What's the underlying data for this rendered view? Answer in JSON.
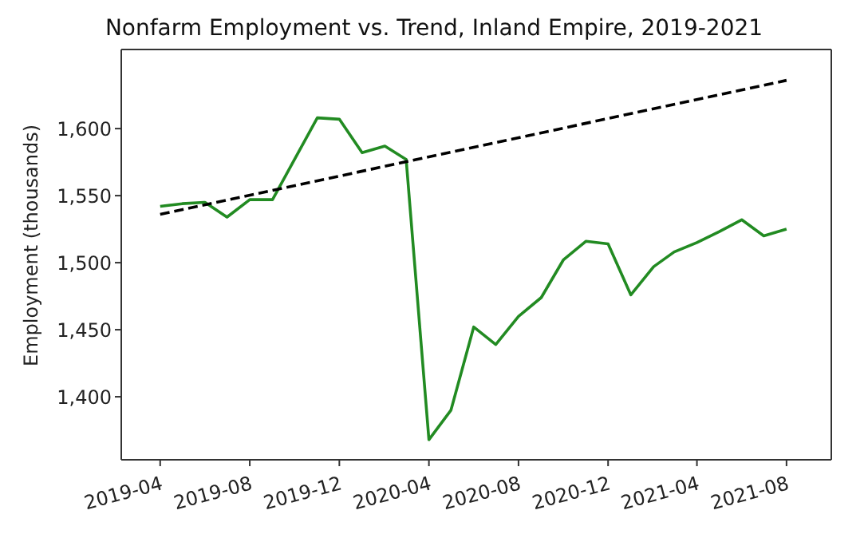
{
  "chart_data": {
    "type": "line",
    "title": "Nonfarm Employment vs. Trend, Inland Empire, 2019-2021",
    "ylabel": "Employment (thousands)",
    "x": [
      "2019-04",
      "2019-05",
      "2019-06",
      "2019-07",
      "2019-08",
      "2019-09",
      "2019-10",
      "2019-11",
      "2019-12",
      "2020-01",
      "2020-02",
      "2020-03",
      "2020-04",
      "2020-05",
      "2020-06",
      "2020-07",
      "2020-08",
      "2020-09",
      "2020-10",
      "2020-11",
      "2020-12",
      "2021-01",
      "2021-02",
      "2021-03",
      "2021-04",
      "2021-05",
      "2021-06",
      "2021-07",
      "2021-08"
    ],
    "series": [
      {
        "color": "#228b22",
        "line_style": "solid",
        "values": [
          1542,
          1544,
          1545,
          1534,
          1547,
          1547,
          1577,
          1608,
          1607,
          1582,
          1587,
          1577,
          1368,
          1390,
          1452,
          1439,
          1460,
          1474,
          1502,
          1516,
          1514,
          1476,
          1497,
          1508,
          1515,
          1523,
          1532,
          1520,
          1525
        ]
      },
      {
        "type": "line",
        "color": "#000000",
        "line_style": "dashed",
        "x": [
          "2019-04",
          "2021-08"
        ],
        "values": [
          1536,
          1636
        ]
      }
    ],
    "xlim": [
      "2019-02-07",
      "2021-10-01"
    ],
    "xticks": [
      "2019-04",
      "2019-08",
      "2019-12",
      "2020-04",
      "2020-08",
      "2020-12",
      "2021-04",
      "2021-08"
    ],
    "ylim": [
      1353,
      1659
    ],
    "yticks": [
      {
        "value": 1400,
        "label": "1,400"
      },
      {
        "value": 1450,
        "label": "1,450"
      },
      {
        "value": 1500,
        "label": "1,500"
      },
      {
        "value": 1550,
        "label": "1,550"
      },
      {
        "value": 1600,
        "label": "1,600"
      }
    ],
    "grid": false,
    "legend": false,
    "marker": "none"
  }
}
